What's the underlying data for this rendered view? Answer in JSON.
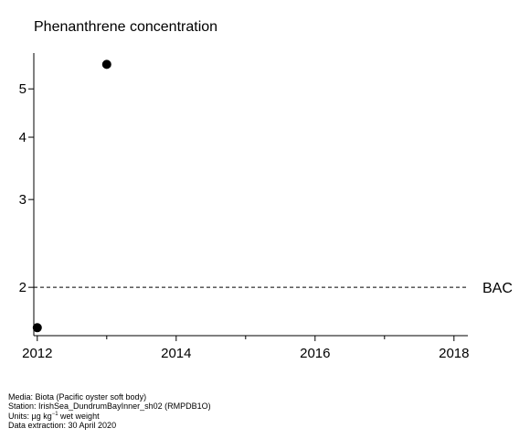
{
  "chart_data": {
    "type": "scatter",
    "title": "Phenanthrene concentration",
    "xlabel": "",
    "ylabel": "",
    "x_scale": "linear",
    "y_scale": "log",
    "xlim": [
      2011.95,
      2018.2
    ],
    "ylim": [
      1.6,
      5.9
    ],
    "x_ticks": [
      2012,
      2014,
      2016,
      2018
    ],
    "x_minor_ticks": [
      2013,
      2015,
      2017
    ],
    "y_ticks": [
      2,
      3,
      4,
      5
    ],
    "grid": false,
    "legend": "none",
    "series": [
      {
        "points": [
          {
            "x": 2012,
            "y": 1.66
          },
          {
            "x": 2013,
            "y": 5.6
          }
        ]
      }
    ],
    "reference_lines": [
      {
        "label": "BAC",
        "y": 2.0,
        "style": "dashed"
      }
    ]
  },
  "footer": {
    "media": "Media: Biota (Pacific oyster soft body)",
    "station": "Station: IrishSea_DundrumBayInner_sh02 (RMPDB1O)",
    "units_prefix": "Units:  µg kg",
    "units_exp": "−1",
    "units_suffix": " wet weight",
    "extraction": "Data extraction: 30 April 2020"
  },
  "colors": {
    "marker": "#000000",
    "axis": "#000000",
    "reference_line": "#000000"
  }
}
